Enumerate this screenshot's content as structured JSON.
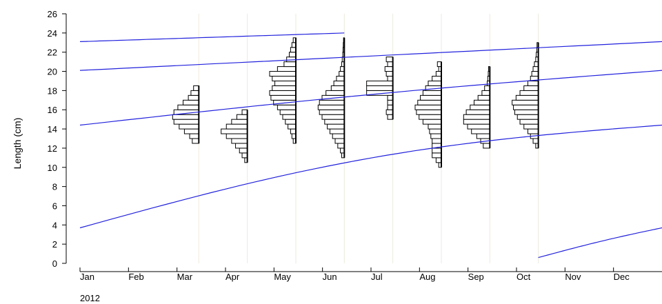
{
  "chart_data": {
    "type": "length-frequency",
    "ylabel": "Length (cm)",
    "xlabel": "",
    "year_label": "2012",
    "ylim": [
      0,
      26
    ],
    "y_ticks": [
      0,
      2,
      4,
      6,
      8,
      10,
      12,
      14,
      16,
      18,
      20,
      22,
      24,
      26
    ],
    "months": [
      "Jan",
      "Feb",
      "Mar",
      "Apr",
      "May",
      "Jun",
      "Jul",
      "Aug",
      "Sep",
      "Oct",
      "Nov",
      "Dec"
    ],
    "x_range_months": [
      0,
      12
    ],
    "colors": {
      "curve": "#2020dd",
      "sample_line": "#eceadc",
      "bar_stroke": "#000000",
      "axis": "#000000"
    },
    "samples": [
      {
        "name": "Mar",
        "t": 2.45,
        "bins": [
          [
            12.5,
            0.25
          ],
          [
            13,
            0.35
          ],
          [
            13.5,
            0.55
          ],
          [
            14,
            0.75
          ],
          [
            14.5,
            0.95
          ],
          [
            15,
            1.0
          ],
          [
            15.5,
            0.95
          ],
          [
            16,
            0.8
          ],
          [
            16.5,
            0.6
          ],
          [
            17,
            0.4
          ],
          [
            17.5,
            0.3
          ],
          [
            18,
            0.2
          ]
        ]
      },
      {
        "name": "Apr",
        "t": 3.45,
        "bins": [
          [
            10.5,
            0.1
          ],
          [
            11,
            0.2
          ],
          [
            11.5,
            0.3
          ],
          [
            12,
            0.45
          ],
          [
            12.5,
            0.6
          ],
          [
            13,
            0.8
          ],
          [
            13.5,
            1.0
          ],
          [
            14,
            0.8
          ],
          [
            14.5,
            0.6
          ],
          [
            15,
            0.4
          ],
          [
            15.5,
            0.2
          ]
        ]
      },
      {
        "name": "May",
        "t": 4.45,
        "bins": [
          [
            12.5,
            0.1
          ],
          [
            13,
            0.15
          ],
          [
            13.5,
            0.2
          ],
          [
            14,
            0.3
          ],
          [
            14.5,
            0.4
          ],
          [
            15,
            0.5
          ],
          [
            15.5,
            0.6
          ],
          [
            16,
            0.7
          ],
          [
            16.5,
            0.85
          ],
          [
            17,
            0.95
          ],
          [
            17.5,
            1.0
          ],
          [
            18,
            0.9
          ],
          [
            18.5,
            0.8
          ],
          [
            19,
            0.9
          ],
          [
            19.5,
            1.0
          ],
          [
            20,
            0.7
          ],
          [
            20.5,
            0.45
          ],
          [
            21,
            0.35
          ],
          [
            21.5,
            0.25
          ],
          [
            22,
            0.2
          ],
          [
            22.5,
            0.15
          ],
          [
            23,
            0.1
          ]
        ]
      },
      {
        "name": "Jun",
        "t": 5.45,
        "bins": [
          [
            11,
            0.1
          ],
          [
            11.5,
            0.15
          ],
          [
            12,
            0.25
          ],
          [
            12.5,
            0.35
          ],
          [
            13,
            0.45
          ],
          [
            13.5,
            0.55
          ],
          [
            14,
            0.65
          ],
          [
            14.5,
            0.75
          ],
          [
            15,
            0.85
          ],
          [
            15.5,
            0.95
          ],
          [
            16,
            1.0
          ],
          [
            16.5,
            0.95
          ],
          [
            17,
            0.85
          ],
          [
            17.5,
            0.7
          ],
          [
            18,
            0.5
          ],
          [
            18.5,
            0.4
          ],
          [
            19,
            0.3
          ],
          [
            19.5,
            0.2
          ],
          [
            20,
            0.15
          ],
          [
            20.5,
            0.1
          ],
          [
            21,
            0.08
          ],
          [
            21.5,
            0.06
          ],
          [
            22,
            0.05
          ],
          [
            22.5,
            0.04
          ],
          [
            23,
            0.03
          ]
        ]
      },
      {
        "name": "Jul",
        "t": 6.45,
        "bins": [
          [
            15,
            0.2
          ],
          [
            15.5,
            0.25
          ],
          [
            16,
            0.2
          ],
          [
            16.5,
            0.2
          ],
          [
            17,
            0.2
          ],
          [
            17.5,
            1.0
          ],
          [
            18,
            1.0
          ],
          [
            18.5,
            1.0
          ],
          [
            19,
            0.2
          ],
          [
            19.5,
            0.25
          ],
          [
            20,
            0.3
          ],
          [
            20.5,
            0.2
          ],
          [
            21,
            0.25
          ]
        ]
      },
      {
        "name": "Aug",
        "t": 7.45,
        "bins": [
          [
            10,
            0.1
          ],
          [
            10.5,
            0.2
          ],
          [
            11,
            0.35
          ],
          [
            11.5,
            0.35
          ],
          [
            12,
            0.35
          ],
          [
            12.5,
            0.35
          ],
          [
            13,
            0.4
          ],
          [
            13.5,
            0.45
          ],
          [
            14,
            0.5
          ],
          [
            14.5,
            0.7
          ],
          [
            15,
            0.85
          ],
          [
            15.5,
            0.95
          ],
          [
            16,
            1.0
          ],
          [
            16.5,
            0.9
          ],
          [
            17,
            0.8
          ],
          [
            17.5,
            0.7
          ],
          [
            18,
            0.6
          ],
          [
            18.5,
            0.5
          ],
          [
            19,
            0.35
          ],
          [
            19.5,
            0.2
          ],
          [
            20,
            0.1
          ],
          [
            20.5,
            0.15
          ]
        ]
      },
      {
        "name": "Sep",
        "t": 8.45,
        "bins": [
          [
            12,
            0.25
          ],
          [
            12.5,
            0.35
          ],
          [
            13,
            0.5
          ],
          [
            13.5,
            0.7
          ],
          [
            14,
            0.85
          ],
          [
            14.5,
            1.0
          ],
          [
            15,
            1.0
          ],
          [
            15.5,
            0.9
          ],
          [
            16,
            0.75
          ],
          [
            16.5,
            0.6
          ],
          [
            17,
            0.45
          ],
          [
            17.5,
            0.3
          ],
          [
            18,
            0.2
          ],
          [
            18.5,
            0.1
          ],
          [
            19,
            0.08
          ],
          [
            19.5,
            0.06
          ],
          [
            20,
            0.05
          ]
        ]
      },
      {
        "name": "Oct",
        "t": 9.45,
        "bins": [
          [
            12,
            0.1
          ],
          [
            12.5,
            0.2
          ],
          [
            13,
            0.3
          ],
          [
            13.5,
            0.4
          ],
          [
            14,
            0.55
          ],
          [
            14.5,
            0.7
          ],
          [
            15,
            0.8
          ],
          [
            15.5,
            0.9
          ],
          [
            16,
            0.95
          ],
          [
            16.5,
            1.0
          ],
          [
            17,
            0.85
          ],
          [
            17.5,
            0.7
          ],
          [
            18,
            0.55
          ],
          [
            18.5,
            0.4
          ],
          [
            19,
            0.3
          ],
          [
            19.5,
            0.25
          ],
          [
            20,
            0.2
          ],
          [
            20.5,
            0.15
          ],
          [
            21,
            0.1
          ],
          [
            21.5,
            0.08
          ],
          [
            22,
            0.06
          ],
          [
            22.5,
            0.05
          ]
        ]
      }
    ],
    "growth_curves": [
      {
        "start": [
          0,
          23.1
        ],
        "end": [
          5.45,
          24.0
        ],
        "bend": 0.0
      },
      {
        "start": [
          0,
          20.1
        ],
        "end": [
          12,
          23.1
        ],
        "bend": 0.0
      },
      {
        "start": [
          0,
          14.4
        ],
        "end": [
          12,
          20.1
        ],
        "bend": 0.06
      },
      {
        "start": [
          0,
          3.7
        ],
        "end": [
          12,
          14.4
        ],
        "bend": 0.18
      },
      {
        "start": [
          9.45,
          0.6
        ],
        "end": [
          12,
          3.7
        ],
        "bend": 0.04
      }
    ]
  }
}
